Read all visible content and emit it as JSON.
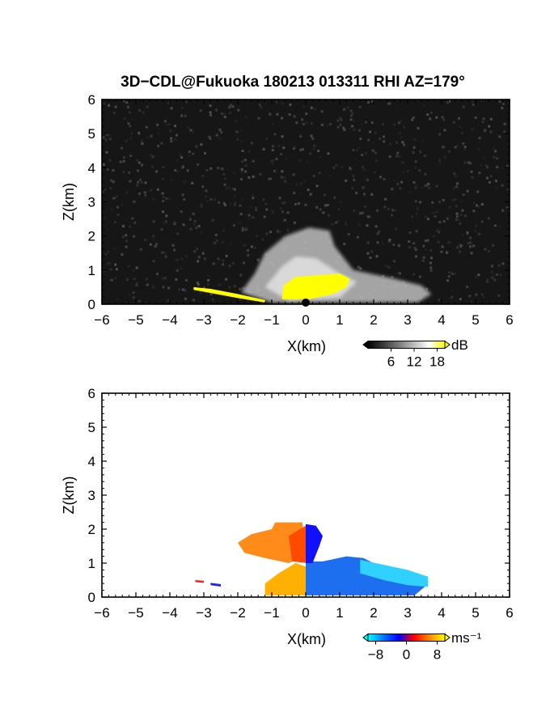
{
  "title": "3D−CDL@Fukuoka 180213 013311 RHI AZ=179°",
  "chart_data": [
    {
      "type": "heatmap",
      "panel": "reflectivity",
      "xlabel": "X(km)",
      "ylabel": "Z(km)",
      "xlim": [
        -6,
        6
      ],
      "ylim": [
        0,
        6
      ],
      "xticks": [
        "−6",
        "−5",
        "−4",
        "−3",
        "−2",
        "−1",
        "0",
        "1",
        "2",
        "3",
        "4",
        "5",
        "6"
      ],
      "yticks": [
        "0",
        "1",
        "2",
        "3",
        "4",
        "5",
        "6"
      ],
      "background": "#161616",
      "colorbar": {
        "unit": "dB",
        "ticks": [
          {
            "v": 6,
            "label": "6"
          },
          {
            "v": 12,
            "label": "12"
          },
          {
            "v": 18,
            "label": "18"
          }
        ],
        "range": [
          0,
          20
        ],
        "stops": [
          "#000000",
          "#3a3a3a",
          "#7a7a7a",
          "#bdbdbd",
          "#ffffff",
          "#ffff00"
        ]
      },
      "regions": [
        {
          "name": "gray-plume",
          "color": "#bdbdbd",
          "opacity": 0.85,
          "points": [
            [
              -1.9,
              0.35
            ],
            [
              -1.5,
              0.9
            ],
            [
              -1.2,
              1.5
            ],
            [
              -0.6,
              2.0
            ],
            [
              0.1,
              2.25
            ],
            [
              0.7,
              2.15
            ],
            [
              0.85,
              1.7
            ],
            [
              1.4,
              1.0
            ],
            [
              2.6,
              0.75
            ],
            [
              3.4,
              0.55
            ],
            [
              3.7,
              0.3
            ],
            [
              3.3,
              0.05
            ],
            [
              -1.0,
              0.05
            ]
          ]
        },
        {
          "name": "gray-bright-core",
          "color": "#e6e6e6",
          "opacity": 0.8,
          "points": [
            [
              -1.2,
              0.5
            ],
            [
              -0.7,
              1.1
            ],
            [
              -0.3,
              1.4
            ],
            [
              0.3,
              1.35
            ],
            [
              1.0,
              0.9
            ],
            [
              1.5,
              0.65
            ],
            [
              1.0,
              0.2
            ],
            [
              -0.5,
              0.1
            ]
          ]
        },
        {
          "name": "yellow-core",
          "color": "#ffff00",
          "opacity": 1.0,
          "points": [
            [
              -0.7,
              0.15
            ],
            [
              -0.65,
              0.55
            ],
            [
              -0.3,
              0.8
            ],
            [
              0.3,
              0.85
            ],
            [
              1.0,
              0.9
            ],
            [
              1.3,
              0.75
            ],
            [
              1.2,
              0.5
            ],
            [
              0.8,
              0.3
            ],
            [
              0.1,
              0.15
            ]
          ]
        },
        {
          "name": "low-echo-streak",
          "color": "#ffff00",
          "opacity": 1.0,
          "points": [
            [
              -3.3,
              0.5
            ],
            [
              -2.8,
              0.45
            ],
            [
              -2.0,
              0.3
            ],
            [
              -1.2,
              0.12
            ],
            [
              -1.2,
              0.05
            ],
            [
              -2.0,
              0.18
            ],
            [
              -2.8,
              0.33
            ],
            [
              -3.3,
              0.42
            ]
          ]
        }
      ]
    },
    {
      "type": "heatmap",
      "panel": "doppler-velocity",
      "xlabel": "X(km)",
      "ylabel": "Z(km)",
      "xlim": [
        -6,
        6
      ],
      "ylim": [
        0,
        6
      ],
      "xticks": [
        "−6",
        "−5",
        "−4",
        "−3",
        "−2",
        "−1",
        "0",
        "1",
        "2",
        "3",
        "4",
        "5",
        "6"
      ],
      "yticks": [
        "0",
        "1",
        "2",
        "3",
        "4",
        "5",
        "6"
      ],
      "background": "#ffffff",
      "colorbar": {
        "unit": "ms⁻¹",
        "ticks": [
          {
            "v": -8,
            "label": "−8"
          },
          {
            "v": 0,
            "label": "0"
          },
          {
            "v": 8,
            "label": "8"
          }
        ],
        "range": [
          -10,
          10
        ],
        "stops": [
          "#00ffff",
          "#0077ff",
          "#0000ff",
          "#ff0000",
          "#ff8800",
          "#ffff00"
        ]
      },
      "regions": [
        {
          "name": "receding-upper",
          "color": "#ff8c1a",
          "opacity": 1.0,
          "points": [
            [
              -2.0,
              1.6
            ],
            [
              -1.6,
              1.85
            ],
            [
              -1.0,
              2.0
            ],
            [
              -0.9,
              2.2
            ],
            [
              -0.1,
              2.2
            ],
            [
              0.0,
              1.2
            ],
            [
              -0.5,
              1.0
            ],
            [
              -1.2,
              1.15
            ],
            [
              -1.8,
              1.3
            ]
          ]
        },
        {
          "name": "receding-core",
          "color": "#ff4a00",
          "opacity": 1.0,
          "points": [
            [
              -0.5,
              1.8
            ],
            [
              0.0,
              2.1
            ],
            [
              0.05,
              1.0
            ],
            [
              -0.4,
              1.05
            ]
          ]
        },
        {
          "name": "receding-lower",
          "color": "#ffb000",
          "opacity": 1.0,
          "points": [
            [
              -1.2,
              0.4
            ],
            [
              -0.8,
              0.7
            ],
            [
              -0.3,
              1.0
            ],
            [
              0.0,
              0.9
            ],
            [
              0.0,
              0.05
            ],
            [
              -1.2,
              0.05
            ]
          ]
        },
        {
          "name": "approaching-core",
          "color": "#1e6ef0",
          "opacity": 1.0,
          "points": [
            [
              0.0,
              0.05
            ],
            [
              0.0,
              1.05
            ],
            [
              0.5,
              1.05
            ],
            [
              1.2,
              1.2
            ],
            [
              1.7,
              1.15
            ],
            [
              2.2,
              0.9
            ],
            [
              2.9,
              0.75
            ],
            [
              3.4,
              0.55
            ],
            [
              3.5,
              0.3
            ],
            [
              3.2,
              0.05
            ]
          ]
        },
        {
          "name": "approaching-edge",
          "color": "#30d0ff",
          "opacity": 1.0,
          "points": [
            [
              1.6,
              1.1
            ],
            [
              2.3,
              0.95
            ],
            [
              3.0,
              0.8
            ],
            [
              3.6,
              0.6
            ],
            [
              3.6,
              0.3
            ],
            [
              3.0,
              0.35
            ],
            [
              2.3,
              0.5
            ],
            [
              1.6,
              0.7
            ]
          ]
        },
        {
          "name": "approaching-upper",
          "color": "#1010ff",
          "opacity": 1.0,
          "points": [
            [
              0.0,
              2.15
            ],
            [
              0.3,
              2.1
            ],
            [
              0.5,
              1.8
            ],
            [
              0.4,
              1.5
            ],
            [
              0.2,
              1.0
            ],
            [
              0.0,
              1.0
            ]
          ]
        },
        {
          "name": "low-streak-red",
          "color": "#ff2020",
          "opacity": 1.0,
          "points": [
            [
              -3.25,
              0.5
            ],
            [
              -3.0,
              0.48
            ],
            [
              -3.0,
              0.42
            ],
            [
              -3.25,
              0.44
            ]
          ]
        },
        {
          "name": "low-streak-blue",
          "color": "#2020ff",
          "opacity": 1.0,
          "points": [
            [
              -2.8,
              0.42
            ],
            [
              -2.5,
              0.38
            ],
            [
              -2.5,
              0.31
            ],
            [
              -2.8,
              0.35
            ]
          ]
        }
      ]
    }
  ]
}
